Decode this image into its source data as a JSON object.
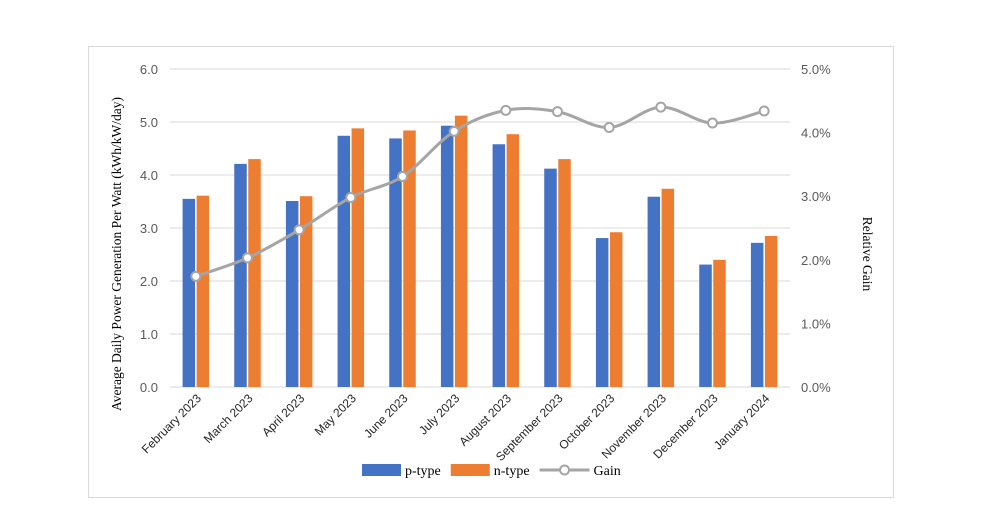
{
  "chart_data": {
    "type": "bar",
    "categories": [
      "February 2023",
      "March 2023",
      "April 2023",
      "May 2023",
      "June 2023",
      "July 2023",
      "August 2023",
      "September 2023",
      "October 2023",
      "November 2023",
      "December 2023",
      "January 2024"
    ],
    "series": [
      {
        "name": "p-type",
        "kind": "bar",
        "axis": "left",
        "color": "#4472c4",
        "values": [
          3.55,
          4.21,
          3.51,
          4.74,
          4.69,
          4.93,
          4.58,
          4.12,
          2.81,
          3.59,
          2.31,
          2.72
        ]
      },
      {
        "name": "n-type",
        "kind": "bar",
        "axis": "left",
        "color": "#ed7d31",
        "values": [
          3.61,
          4.3,
          3.6,
          4.88,
          4.84,
          5.12,
          4.77,
          4.3,
          2.92,
          3.74,
          2.4,
          2.85
        ]
      },
      {
        "name": "Gain",
        "kind": "line",
        "axis": "right",
        "color": "#a5a5a5",
        "values": [
          1.74,
          2.03,
          2.47,
          2.98,
          3.31,
          4.02,
          4.35,
          4.33,
          4.08,
          4.4,
          4.15,
          4.34
        ]
      }
    ],
    "ylabel_left": "Average Daily Power Generation Per Watt    (kWh/kW/day)",
    "ylabel_right": "Relative Gain",
    "ylim_left": [
      0,
      6
    ],
    "ylim_right": [
      0,
      5
    ],
    "yticks_left": [
      "0.0",
      "1.0",
      "2.0",
      "3.0",
      "4.0",
      "5.0",
      "6.0"
    ],
    "yticks_right": [
      "0.0%",
      "1.0%",
      "2.0%",
      "3.0%",
      "4.0%",
      "5.0%"
    ],
    "grid": true,
    "legend_position": "bottom"
  }
}
